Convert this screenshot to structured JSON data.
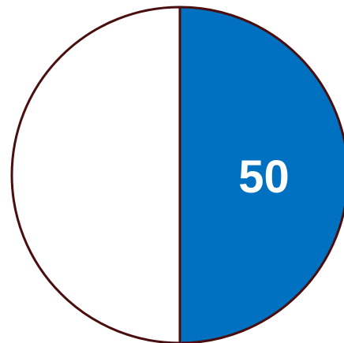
{
  "chart_data": {
    "type": "pie",
    "slices": [
      {
        "value": 50,
        "label": "50",
        "color": "#0070C0"
      },
      {
        "value": 50,
        "label": "",
        "color": "#FFFFFF"
      }
    ],
    "total": 100,
    "outline_color": "#4A0E0E"
  }
}
